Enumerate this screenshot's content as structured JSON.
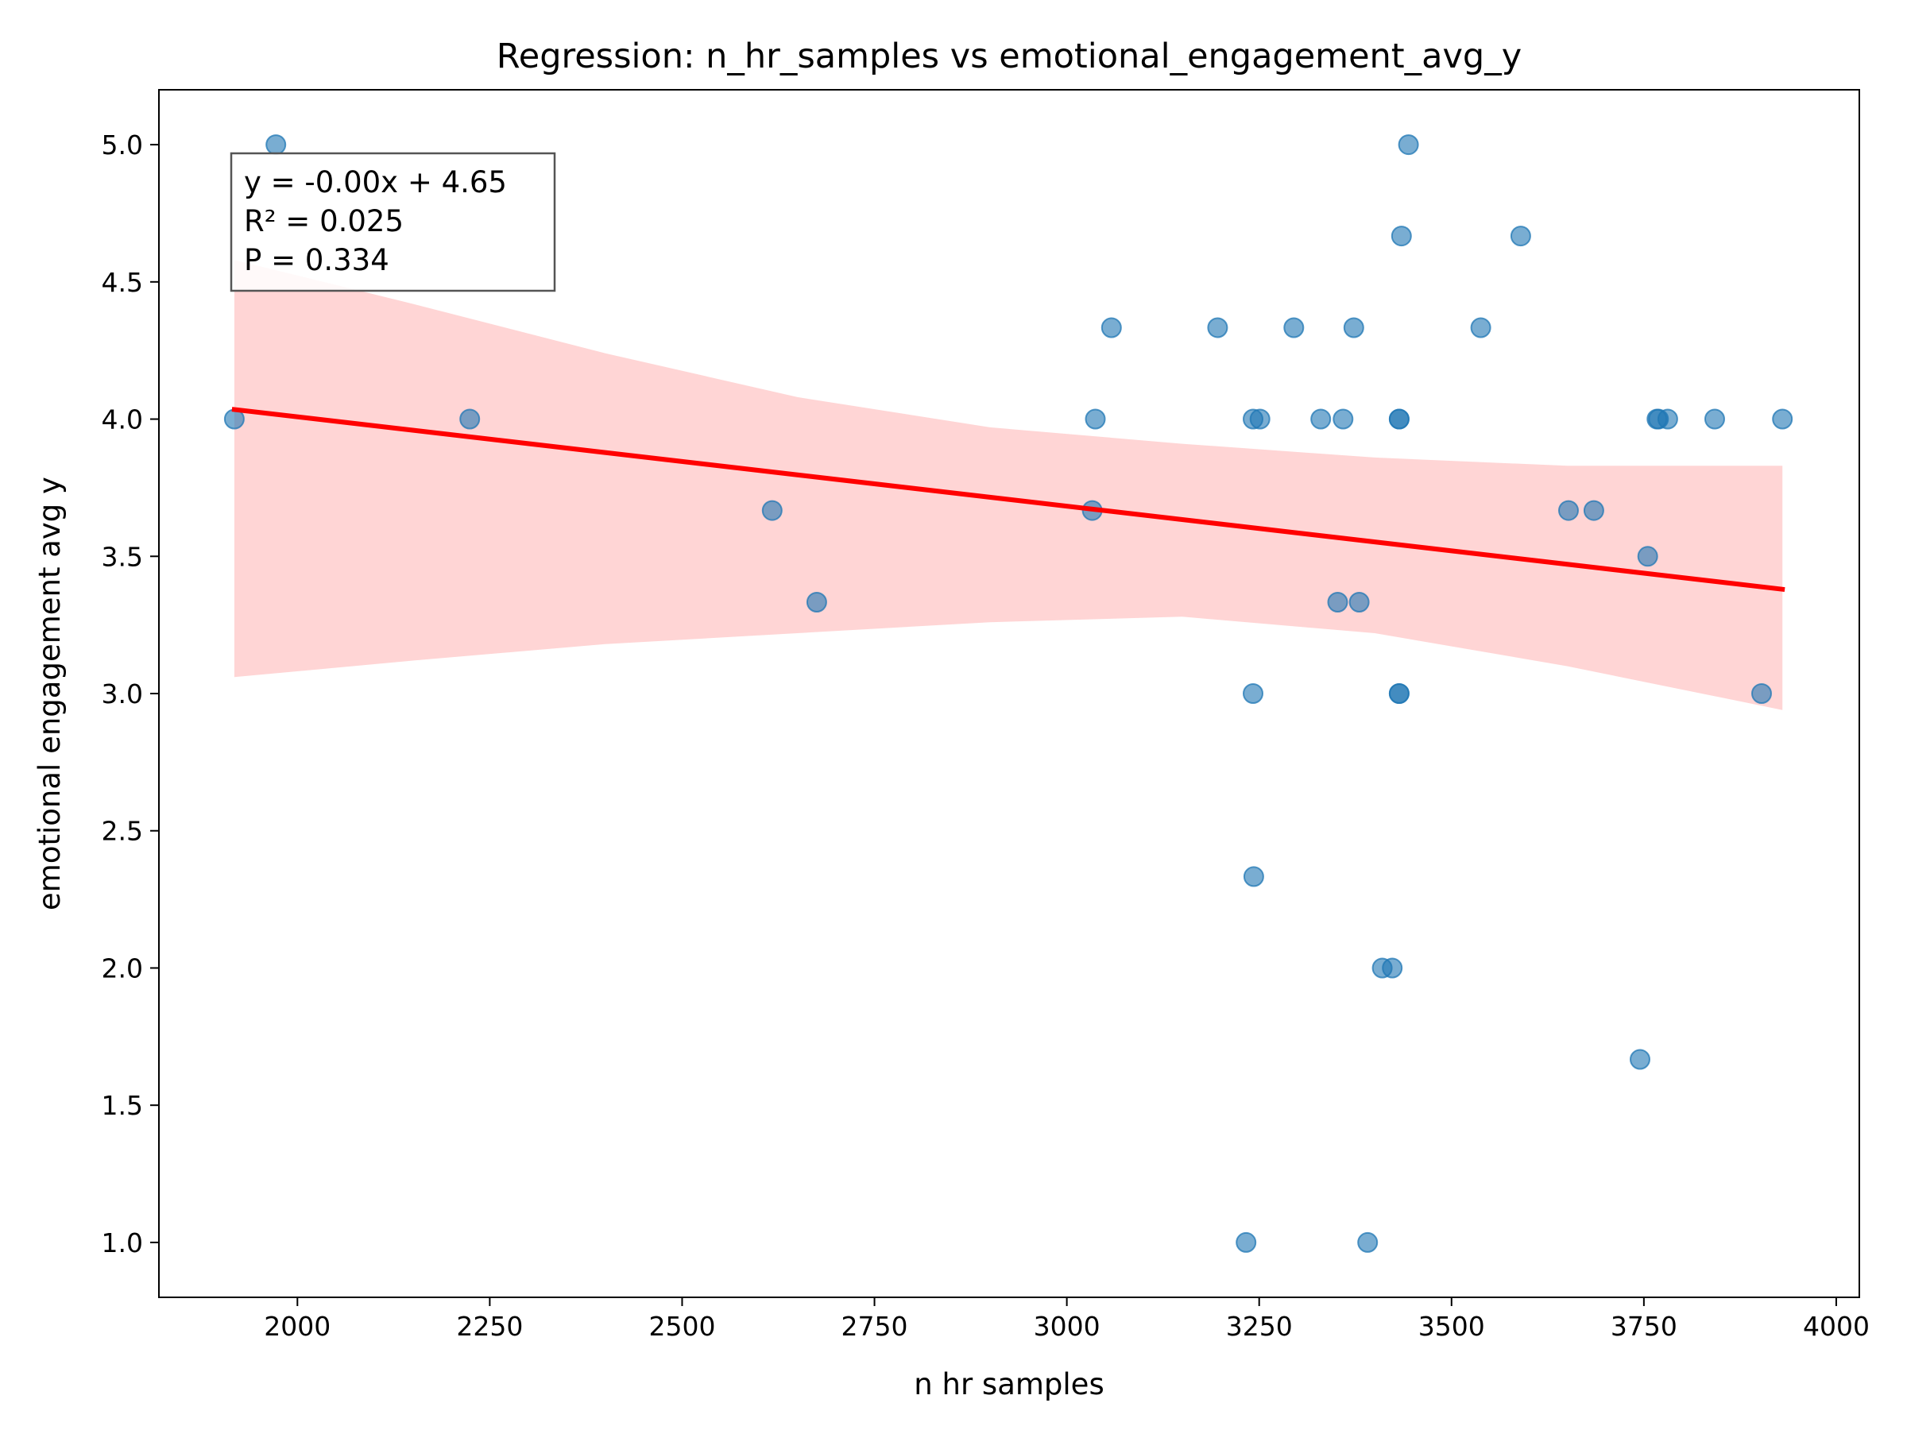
{
  "chart_data": {
    "type": "scatter",
    "title": "Regression: n_hr_samples vs emotional_engagement_avg_y",
    "xlabel": "n hr samples",
    "ylabel": "emotional engagement avg y",
    "xlim": [
      1820,
      4030
    ],
    "ylim": [
      0.8,
      5.2
    ],
    "xticks": [
      2000,
      2250,
      2500,
      2750,
      3000,
      3250,
      3500,
      3750,
      4000
    ],
    "yticks": [
      1.0,
      1.5,
      2.0,
      2.5,
      3.0,
      3.5,
      4.0,
      4.5,
      5.0
    ],
    "grid": false,
    "points": {
      "x": [
        1918,
        1972,
        2224,
        2617,
        2675,
        3033,
        3037,
        3058,
        3196,
        3242,
        3251,
        3295,
        3330,
        3359,
        3373,
        3432,
        3432,
        3435,
        3444,
        3538,
        3590,
        3242,
        3243,
        3432,
        3432,
        3410,
        3423,
        3233,
        3391,
        3352,
        3380,
        3652,
        3685,
        3755,
        3745,
        3767,
        3769,
        3781,
        3842,
        3903,
        3930
      ],
      "y": [
        4.0,
        5.0,
        4.0,
        3.667,
        3.333,
        3.667,
        4.0,
        4.333,
        4.333,
        4.0,
        4.0,
        4.333,
        4.0,
        4.0,
        4.333,
        4.0,
        4.0,
        4.667,
        5.0,
        4.333,
        4.667,
        3.0,
        2.333,
        3.0,
        3.0,
        2.0,
        2.0,
        1.0,
        1.0,
        3.333,
        3.333,
        3.667,
        3.667,
        3.5,
        1.667,
        4.0,
        4.0,
        4.0,
        4.0,
        3.0,
        4.0
      ],
      "color": "#1f77b4"
    },
    "regression_line": {
      "x": [
        1918,
        3930
      ],
      "y": [
        4.035,
        3.38
      ],
      "color": "#ff0000"
    },
    "confidence_band": {
      "color": "#ffb3b3",
      "x": [
        1918,
        2150,
        2400,
        2650,
        2900,
        3150,
        3400,
        3650,
        3930
      ],
      "upper": [
        4.58,
        4.42,
        4.24,
        4.08,
        3.97,
        3.91,
        3.86,
        3.83,
        3.83
      ],
      "lower": [
        3.06,
        3.12,
        3.18,
        3.22,
        3.26,
        3.28,
        3.22,
        3.1,
        2.94
      ]
    },
    "annotation": {
      "lines": [
        "y = -0.00x + 4.65",
        "R² = 0.025",
        "P = 0.334"
      ],
      "placement": "top-left"
    }
  }
}
